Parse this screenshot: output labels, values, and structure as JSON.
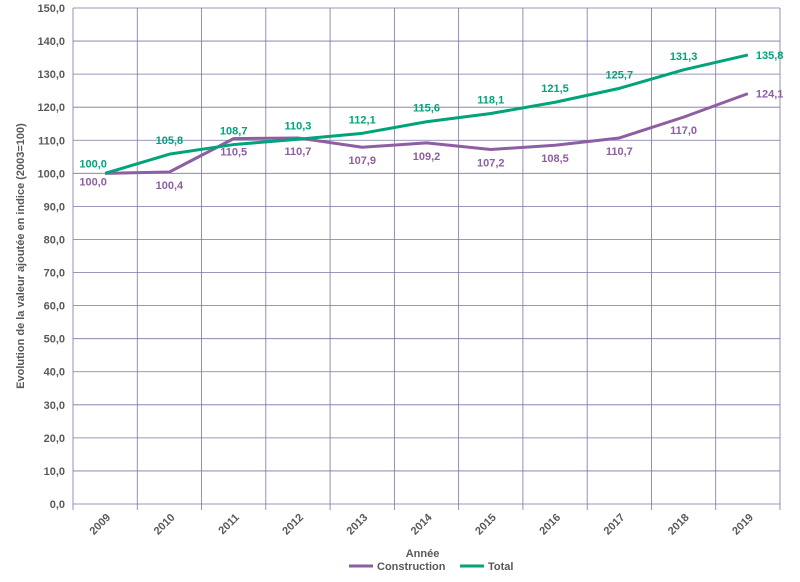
{
  "chart_data": {
    "type": "line",
    "xlabel": "Année",
    "ylabel": "Evolution de la valeur ajoutée en indice (2003=100)",
    "categories": [
      "2009",
      "2010",
      "2011",
      "2012",
      "2013",
      "2014",
      "2015",
      "2016",
      "2017",
      "2018",
      "2019"
    ],
    "ylim": [
      0,
      150
    ],
    "yticks": [
      "0,0",
      "10,0",
      "20,0",
      "30,0",
      "40,0",
      "50,0",
      "60,0",
      "70,0",
      "80,0",
      "90,0",
      "100,0",
      "110,0",
      "120,0",
      "130,0",
      "140,0",
      "150,0"
    ],
    "grid": true,
    "legend_position": "bottom",
    "series": [
      {
        "name": "Construction",
        "color": "#8e5ea2",
        "values": [
          100.0,
          100.4,
          110.5,
          110.7,
          107.9,
          109.2,
          107.2,
          108.5,
          110.7,
          117.0,
          124.1
        ],
        "labels": [
          "100,0",
          "100,4",
          "110,5",
          "110,7",
          "107,9",
          "109,2",
          "107,2",
          "108,5",
          "110,7",
          "117,0",
          "124,1"
        ]
      },
      {
        "name": "Total",
        "color": "#00a37a",
        "values": [
          100.0,
          105.8,
          108.7,
          110.3,
          112.1,
          115.6,
          118.1,
          121.5,
          125.7,
          131.3,
          135.8
        ],
        "labels": [
          "100,0",
          "105,8",
          "108,7",
          "110,3",
          "112,1",
          "115,6",
          "118,1",
          "121,5",
          "125,7",
          "131,3",
          "135,8"
        ]
      }
    ]
  }
}
